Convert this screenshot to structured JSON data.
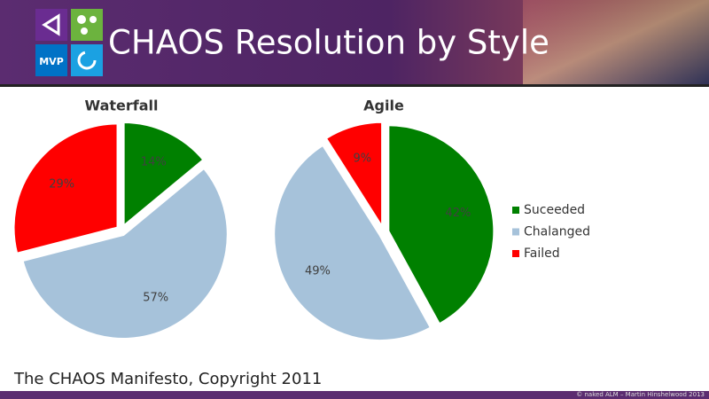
{
  "header": {
    "title": "CHAOS Resolution by Style",
    "badge": "MVP"
  },
  "chart_data": [
    {
      "type": "pie",
      "title": "Waterfall",
      "categories": [
        "Suceeded",
        "Chalanged",
        "Failed"
      ],
      "values": [
        14,
        57,
        29
      ],
      "value_labels": [
        "14%",
        "57%",
        "29%"
      ],
      "colors": [
        "#008000",
        "#a6c2da",
        "#ff0000"
      ],
      "legend": "right"
    },
    {
      "type": "pie",
      "title": "Agile",
      "categories": [
        "Suceeded",
        "Chalanged",
        "Failed"
      ],
      "values": [
        42,
        49,
        9
      ],
      "value_labels": [
        "42%",
        "49%",
        "9%"
      ],
      "colors": [
        "#008000",
        "#a6c2da",
        "#ff0000"
      ],
      "legend": "right"
    }
  ],
  "footer": {
    "source": "The CHAOS Manifesto, Copyright 2011",
    "copyright": "© naked ALM – Martin Hinshelwood 2013"
  }
}
